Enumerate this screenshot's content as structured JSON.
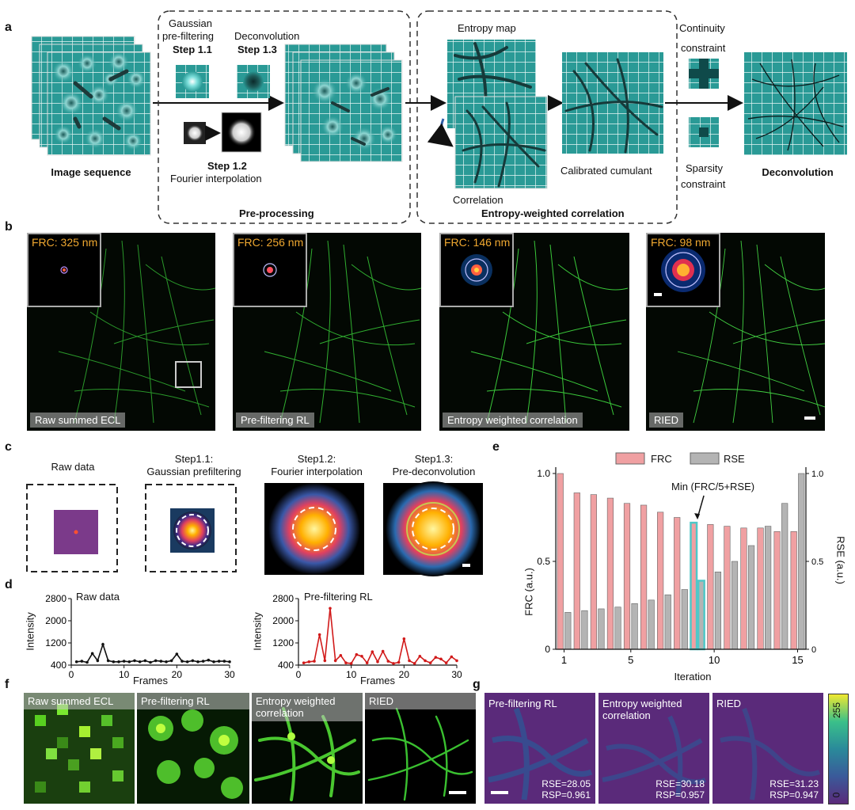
{
  "panel_letters": {
    "a": "a",
    "b": "b",
    "c": "c",
    "d": "d",
    "e": "e",
    "f": "f",
    "g": "g"
  },
  "panel_a": {
    "image_sequence": "Image sequence",
    "gaussian_1": "Gaussian",
    "gaussian_2": "pre-filtering",
    "step_1_1": "Step 1.1",
    "deconvolution_top": "Deconvolution",
    "step_1_3": "Step 1.3",
    "step_1_2": "Step 1.2",
    "fourier_interp": "Fourier interpolation",
    "pre_processing": "Pre-processing",
    "entropy_map": "Entropy map",
    "correlation": "Correlation",
    "entropy_weighted_correlation": "Entropy-weighted correlation",
    "calibrated_cumulant": "Calibrated cumulant",
    "continuity_1": "Continuity",
    "continuity_2": "constraint",
    "sparsity_1": "Sparsity",
    "sparsity_2": "constraint",
    "deconvolution": "Deconvolution"
  },
  "panel_b": [
    {
      "frc": "FRC: 325 nm",
      "label": "Raw summed ECL"
    },
    {
      "frc": "FRC: 256 nm",
      "label": "Pre-filtering RL"
    },
    {
      "frc": "FRC: 146 nm",
      "label": "Entropy weighted correlation"
    },
    {
      "frc": "FRC: 98 nm",
      "label": "RIED"
    }
  ],
  "panel_c": [
    {
      "title1": "Raw data",
      "title2": ""
    },
    {
      "title1": "Step1.1:",
      "title2": "Gaussian prefiltering"
    },
    {
      "title1": "Step1.2:",
      "title2": "Fourier interpolation"
    },
    {
      "title1": "Step1.3:",
      "title2": "Pre-deconvolution"
    }
  ],
  "panel_d": [
    {
      "title": "Raw data",
      "ylabel": "Intensity",
      "xlabel": "Frames",
      "yticks": [
        "2800",
        "2000",
        "1200",
        "400"
      ],
      "xticks": [
        "0",
        "10",
        "20",
        "30"
      ]
    },
    {
      "title": "Pre-filtering RL",
      "ylabel": "Intensity",
      "xlabel": "Frames",
      "yticks": [
        "2800",
        "2000",
        "1200",
        "400"
      ],
      "xticks": [
        "0",
        "10",
        "20",
        "30"
      ]
    }
  ],
  "panel_f": [
    "Raw summed ECL",
    "Pre-filtering RL",
    "Entropy weighted\ncorrelation",
    "RIED"
  ],
  "panel_g": [
    {
      "label": "Pre-filtering RL",
      "rse": "RSE=28.05",
      "rsp": "RSP=0.961"
    },
    {
      "label": "Entropy weighted\ncorrelation",
      "rse": "RSE=30.18",
      "rsp": "RSP=0.957"
    },
    {
      "label": "RIED",
      "rse": "RSE=31.23",
      "rsp": "RSP=0.947"
    }
  ],
  "colorbar": {
    "max": "255",
    "min": "0"
  },
  "colors": {
    "teal": "#2a9a96",
    "green": "#36c836",
    "frc_bar": "#f0a0a2",
    "rse_bar": "#b4b4b4",
    "highlight": "#50c8c8",
    "red_line": "#d11a1a",
    "orange_text": "#f0a830"
  },
  "chart_data": [
    {
      "type": "line",
      "title": "Raw data",
      "xlabel": "Frames",
      "ylabel": "Intensity",
      "xlim": [
        0,
        30
      ],
      "ylim": [
        400,
        2800
      ],
      "x": [
        1,
        2,
        3,
        4,
        5,
        6,
        7,
        8,
        9,
        10,
        11,
        12,
        13,
        14,
        15,
        16,
        17,
        18,
        19,
        20,
        21,
        22,
        23,
        24,
        25,
        26,
        27,
        28,
        29,
        30
      ],
      "series": [
        {
          "name": "Raw data",
          "values": [
            520,
            540,
            500,
            820,
            560,
            1150,
            560,
            520,
            520,
            540,
            520,
            560,
            520,
            560,
            500,
            560,
            540,
            520,
            560,
            800,
            540,
            520,
            560,
            520,
            540,
            580,
            520,
            540,
            540,
            520
          ]
        }
      ]
    },
    {
      "type": "line",
      "title": "Pre-filtering RL",
      "xlabel": "Frames",
      "ylabel": "Intensity",
      "xlim": [
        0,
        30
      ],
      "ylim": [
        400,
        2800
      ],
      "x": [
        1,
        2,
        3,
        4,
        5,
        6,
        7,
        8,
        9,
        10,
        11,
        12,
        13,
        14,
        15,
        16,
        17,
        18,
        19,
        20,
        21,
        22,
        23,
        24,
        25,
        26,
        27,
        28,
        29,
        30
      ],
      "series": [
        {
          "name": "Pre-filtering RL",
          "values": [
            480,
            520,
            540,
            1500,
            560,
            2450,
            560,
            750,
            480,
            460,
            780,
            720,
            480,
            880,
            520,
            900,
            540,
            460,
            500,
            1350,
            560,
            460,
            720,
            560,
            480,
            680,
            620,
            480,
            700,
            560
          ]
        }
      ]
    },
    {
      "type": "bar",
      "title": "",
      "xlabel": "Iteration",
      "ylabel": "FRC (a.u.)",
      "y2label": "RSE (a.u.)",
      "annotation": "Min (FRC/5+RSE)",
      "legend": [
        "FRC",
        "RSE"
      ],
      "x": [
        1,
        2,
        3,
        4,
        5,
        6,
        7,
        8,
        9,
        10,
        11,
        12,
        13,
        14,
        15
      ],
      "xticks": [
        "1",
        "5",
        "10",
        "15"
      ],
      "yticks": [
        "0",
        "0.5",
        "1.0"
      ],
      "y2ticks": [
        "0",
        "0.5",
        "1.0"
      ],
      "ylim": [
        0,
        1
      ],
      "y2lim": [
        0,
        1
      ],
      "highlight_iteration": 9,
      "series": [
        {
          "name": "FRC",
          "values": [
            1.0,
            0.89,
            0.88,
            0.86,
            0.83,
            0.82,
            0.78,
            0.75,
            0.72,
            0.71,
            0.7,
            0.69,
            0.69,
            0.67,
            0.67
          ]
        },
        {
          "name": "RSE",
          "values": [
            0.21,
            0.22,
            0.23,
            0.24,
            0.26,
            0.28,
            0.31,
            0.34,
            0.39,
            0.44,
            0.5,
            0.59,
            0.7,
            0.83,
            1.0
          ]
        }
      ]
    }
  ]
}
